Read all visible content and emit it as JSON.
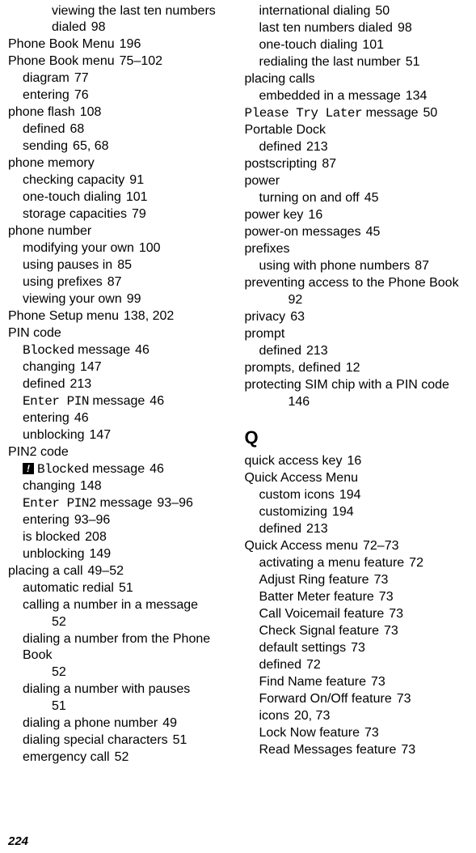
{
  "footer": "224",
  "left": [
    {
      "level": "sub2",
      "text": "viewing the last ten numbers dialed",
      "pg": "98"
    },
    {
      "level": "top",
      "text": "Phone Book Menu",
      "pg": "196"
    },
    {
      "level": "top",
      "text": "Phone Book menu",
      "pg": "75–102"
    },
    {
      "level": "sub",
      "text": "diagram",
      "pg": "77"
    },
    {
      "level": "sub",
      "text": "entering",
      "pg": "76"
    },
    {
      "level": "top",
      "text": "phone flash",
      "pg": "108"
    },
    {
      "level": "sub",
      "text": "defined",
      "pg": "68"
    },
    {
      "level": "sub",
      "text": "sending",
      "pg": "65, 68"
    },
    {
      "level": "top",
      "text": "phone memory",
      "pg": ""
    },
    {
      "level": "sub",
      "text": "checking capacity",
      "pg": "91"
    },
    {
      "level": "sub",
      "text": "one-touch dialing",
      "pg": "101"
    },
    {
      "level": "sub",
      "text": "storage capacities",
      "pg": "79"
    },
    {
      "level": "top",
      "text": "phone number",
      "pg": ""
    },
    {
      "level": "sub",
      "text": "modifying your own",
      "pg": "100"
    },
    {
      "level": "sub",
      "text": "using pauses in",
      "pg": "85"
    },
    {
      "level": "sub",
      "text": "using prefixes",
      "pg": "87"
    },
    {
      "level": "sub",
      "text": "viewing your own",
      "pg": "99"
    },
    {
      "level": "top",
      "text": "Phone Setup menu",
      "pg": "138, 202"
    },
    {
      "level": "top",
      "text": "PIN code",
      "pg": ""
    },
    {
      "level": "sub",
      "mono": "Blocked",
      "text": " message",
      "pg": "46"
    },
    {
      "level": "sub",
      "text": "changing",
      "pg": "147"
    },
    {
      "level": "sub",
      "text": "defined",
      "pg": "213"
    },
    {
      "level": "sub",
      "mono": "Enter PIN",
      "text": " message",
      "pg": "46"
    },
    {
      "level": "sub",
      "text": "entering",
      "pg": "46"
    },
    {
      "level": "sub",
      "text": "unblocking",
      "pg": "147"
    },
    {
      "level": "top",
      "text": "PIN2 code",
      "pg": ""
    },
    {
      "level": "sub",
      "icon": true,
      "mono": "Blocked",
      "text": " message",
      "pg": "46"
    },
    {
      "level": "sub",
      "text": "changing",
      "pg": "148"
    },
    {
      "level": "sub",
      "mono": "Enter PIN2",
      "text": " message",
      "pg": "93–96"
    },
    {
      "level": "sub",
      "text": "entering",
      "pg": "93–96"
    },
    {
      "level": "sub",
      "text": "is blocked",
      "pg": "208"
    },
    {
      "level": "sub",
      "text": "unblocking",
      "pg": "149"
    },
    {
      "level": "top",
      "text": "placing a call",
      "pg": "49–52"
    },
    {
      "level": "sub",
      "text": "automatic redial",
      "pg": "51"
    },
    {
      "level": "subwrap",
      "text": "calling a number in a message",
      "pg": "52"
    },
    {
      "level": "subwrap",
      "text": "dialing a number from the Phone Book",
      "pg": "52"
    },
    {
      "level": "subwrap",
      "text": "dialing a number with pauses",
      "pg": "51"
    },
    {
      "level": "sub",
      "text": "dialing a phone number",
      "pg": "49"
    },
    {
      "level": "sub",
      "text": "dialing special characters",
      "pg": "51"
    },
    {
      "level": "sub",
      "text": "emergency call",
      "pg": "52"
    }
  ],
  "right": [
    {
      "level": "sub",
      "text": "international dialing",
      "pg": "50"
    },
    {
      "level": "sub",
      "text": "last ten numbers dialed",
      "pg": "98"
    },
    {
      "level": "sub",
      "text": "one-touch dialing",
      "pg": "101"
    },
    {
      "level": "sub",
      "text": "redialing the last number",
      "pg": "51"
    },
    {
      "level": "top",
      "text": "placing calls",
      "pg": ""
    },
    {
      "level": "sub",
      "text": "embedded in a message",
      "pg": "134"
    },
    {
      "level": "top",
      "mono": "Please Try Later",
      "text": " message",
      "pg": "50"
    },
    {
      "level": "top",
      "text": "Portable Dock",
      "pg": ""
    },
    {
      "level": "sub",
      "text": "defined",
      "pg": "213"
    },
    {
      "level": "top",
      "text": "postscripting",
      "pg": "87"
    },
    {
      "level": "top",
      "text": "power",
      "pg": ""
    },
    {
      "level": "sub",
      "text": "turning on and off",
      "pg": "45"
    },
    {
      "level": "top",
      "text": "power key",
      "pg": "16"
    },
    {
      "level": "top",
      "text": "power-on messages",
      "pg": "45"
    },
    {
      "level": "top",
      "text": "prefixes",
      "pg": ""
    },
    {
      "level": "sub",
      "text": "using with phone numbers",
      "pg": "87"
    },
    {
      "level": "topwrap",
      "text": "preventing access to the Phone Book",
      "pg": "92"
    },
    {
      "level": "top",
      "text": "privacy",
      "pg": "63"
    },
    {
      "level": "top",
      "text": "prompt",
      "pg": ""
    },
    {
      "level": "sub",
      "text": "defined",
      "pg": "213"
    },
    {
      "level": "top",
      "text": "prompts, defined",
      "pg": "12"
    },
    {
      "level": "topwrap",
      "text": "protecting SIM chip with a PIN code",
      "pg": "146"
    },
    {
      "level": "heading",
      "text": "Q"
    },
    {
      "level": "top",
      "text": "quick access key",
      "pg": "16"
    },
    {
      "level": "top",
      "text": "Quick Access Menu",
      "pg": ""
    },
    {
      "level": "sub",
      "text": "custom icons",
      "pg": "194"
    },
    {
      "level": "sub",
      "text": "customizing",
      "pg": "194"
    },
    {
      "level": "sub",
      "text": "defined",
      "pg": "213"
    },
    {
      "level": "top",
      "text": "Quick Access menu",
      "pg": "72–73"
    },
    {
      "level": "sub",
      "text": "activating a menu feature",
      "pg": "72"
    },
    {
      "level": "sub",
      "text": "Adjust Ring feature",
      "pg": "73"
    },
    {
      "level": "sub",
      "text": "Batter Meter feature",
      "pg": "73"
    },
    {
      "level": "sub",
      "text": "Call Voicemail feature",
      "pg": "73"
    },
    {
      "level": "sub",
      "text": "Check Signal feature",
      "pg": "73"
    },
    {
      "level": "sub",
      "text": "default settings",
      "pg": "73"
    },
    {
      "level": "sub",
      "text": "defined",
      "pg": "72"
    },
    {
      "level": "sub",
      "text": "Find Name feature",
      "pg": "73"
    },
    {
      "level": "sub",
      "text": "Forward On/Off feature",
      "pg": "73"
    },
    {
      "level": "sub",
      "text": "icons",
      "pg": "20, 73"
    },
    {
      "level": "sub",
      "text": "Lock Now feature",
      "pg": "73"
    },
    {
      "level": "sub",
      "text": "Read Messages feature",
      "pg": "73"
    }
  ]
}
